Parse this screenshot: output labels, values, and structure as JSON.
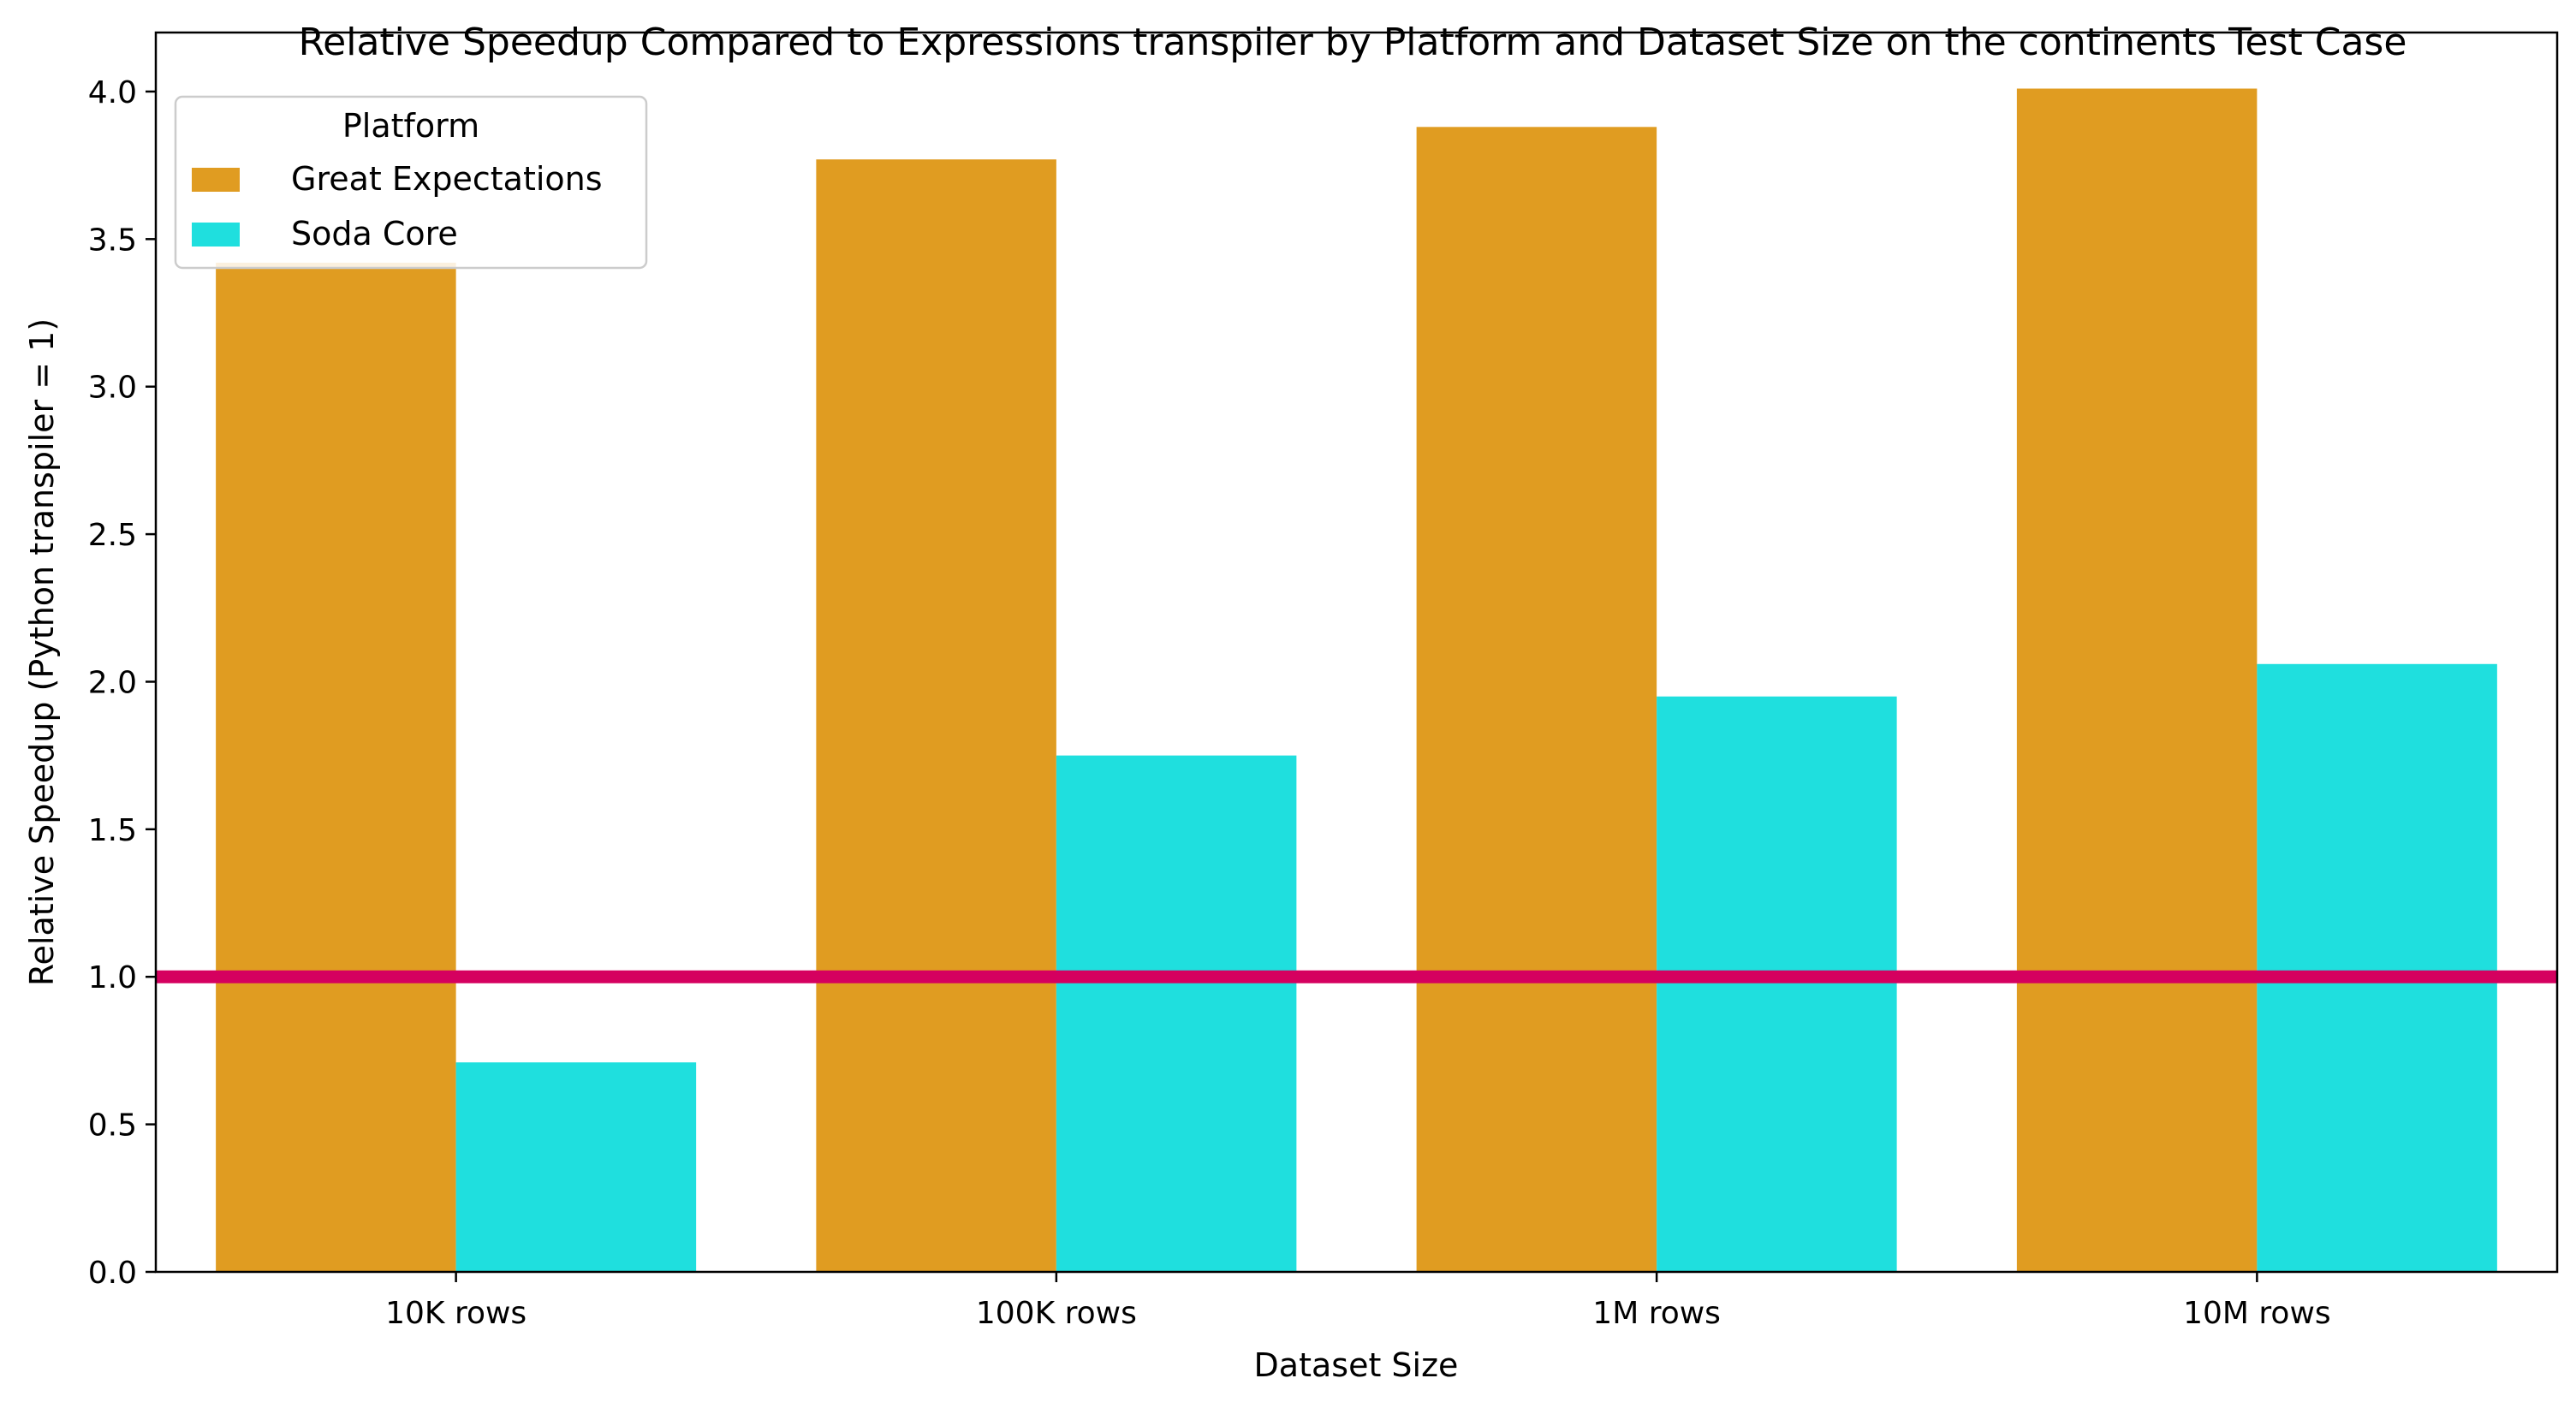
{
  "chart_data": {
    "type": "bar",
    "title": "Relative Speedup Compared to Expressions transpiler by Platform and Dataset Size on the continents Test Case",
    "xlabel": "Dataset Size",
    "ylabel": "Relative Speedup (Python transpiler = 1)",
    "categories": [
      "10K rows",
      "100K rows",
      "1M rows",
      "10M rows"
    ],
    "series": [
      {
        "name": "Great Expectations",
        "color": "#e09c21",
        "values": [
          3.42,
          3.77,
          3.88,
          4.01
        ]
      },
      {
        "name": "Soda Core",
        "color": "#1fdfde",
        "values": [
          0.71,
          1.75,
          1.95,
          2.06
        ]
      }
    ],
    "ylim": [
      0,
      4.2
    ],
    "yticks": [
      "0.0",
      "0.5",
      "1.0",
      "1.5",
      "2.0",
      "2.5",
      "3.0",
      "3.5",
      "4.0"
    ],
    "reference_line": {
      "value": 1.0,
      "color": "#d5005f"
    },
    "legend": {
      "title": "Platform",
      "position": "top-left"
    },
    "grid": false
  }
}
